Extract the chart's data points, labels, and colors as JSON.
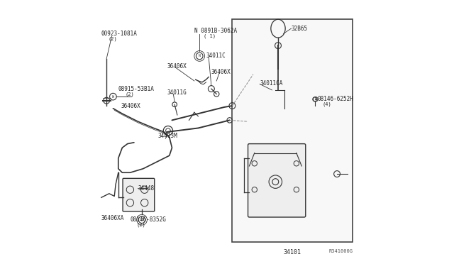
{
  "bg_color": "#ffffff",
  "line_color": "#333333",
  "label_color": "#222222",
  "diagram_color": "#555555",
  "fig_width": 6.4,
  "fig_height": 3.72,
  "ref_code": "R341000G",
  "box_label": "34101",
  "labels": {
    "00923-1081A": [
      0.045,
      0.82,
      "(2)"
    ],
    "08915-53B1A": [
      0.135,
      0.655,
      "(2)"
    ],
    "36406X_left": [
      0.115,
      0.6,
      ""
    ],
    "34413M": [
      0.265,
      0.475,
      ""
    ],
    "34448": [
      0.195,
      0.275,
      ""
    ],
    "08146-8352G": [
      0.175,
      0.155,
      "(2)"
    ],
    "36406XA": [
      0.06,
      0.16,
      ""
    ],
    "36406X_mid": [
      0.305,
      0.725,
      ""
    ],
    "34011G": [
      0.27,
      0.635,
      ""
    ],
    "N0891B-3062A": [
      0.37,
      0.88,
      "(1)"
    ],
    "34011C": [
      0.41,
      0.79,
      ""
    ],
    "36406X_right": [
      0.45,
      0.72,
      ""
    ],
    "32B65": [
      0.72,
      0.885,
      ""
    ],
    "34011CA": [
      0.62,
      0.67,
      ""
    ],
    "08146-6252H": [
      0.845,
      0.615,
      "(4)"
    ]
  }
}
